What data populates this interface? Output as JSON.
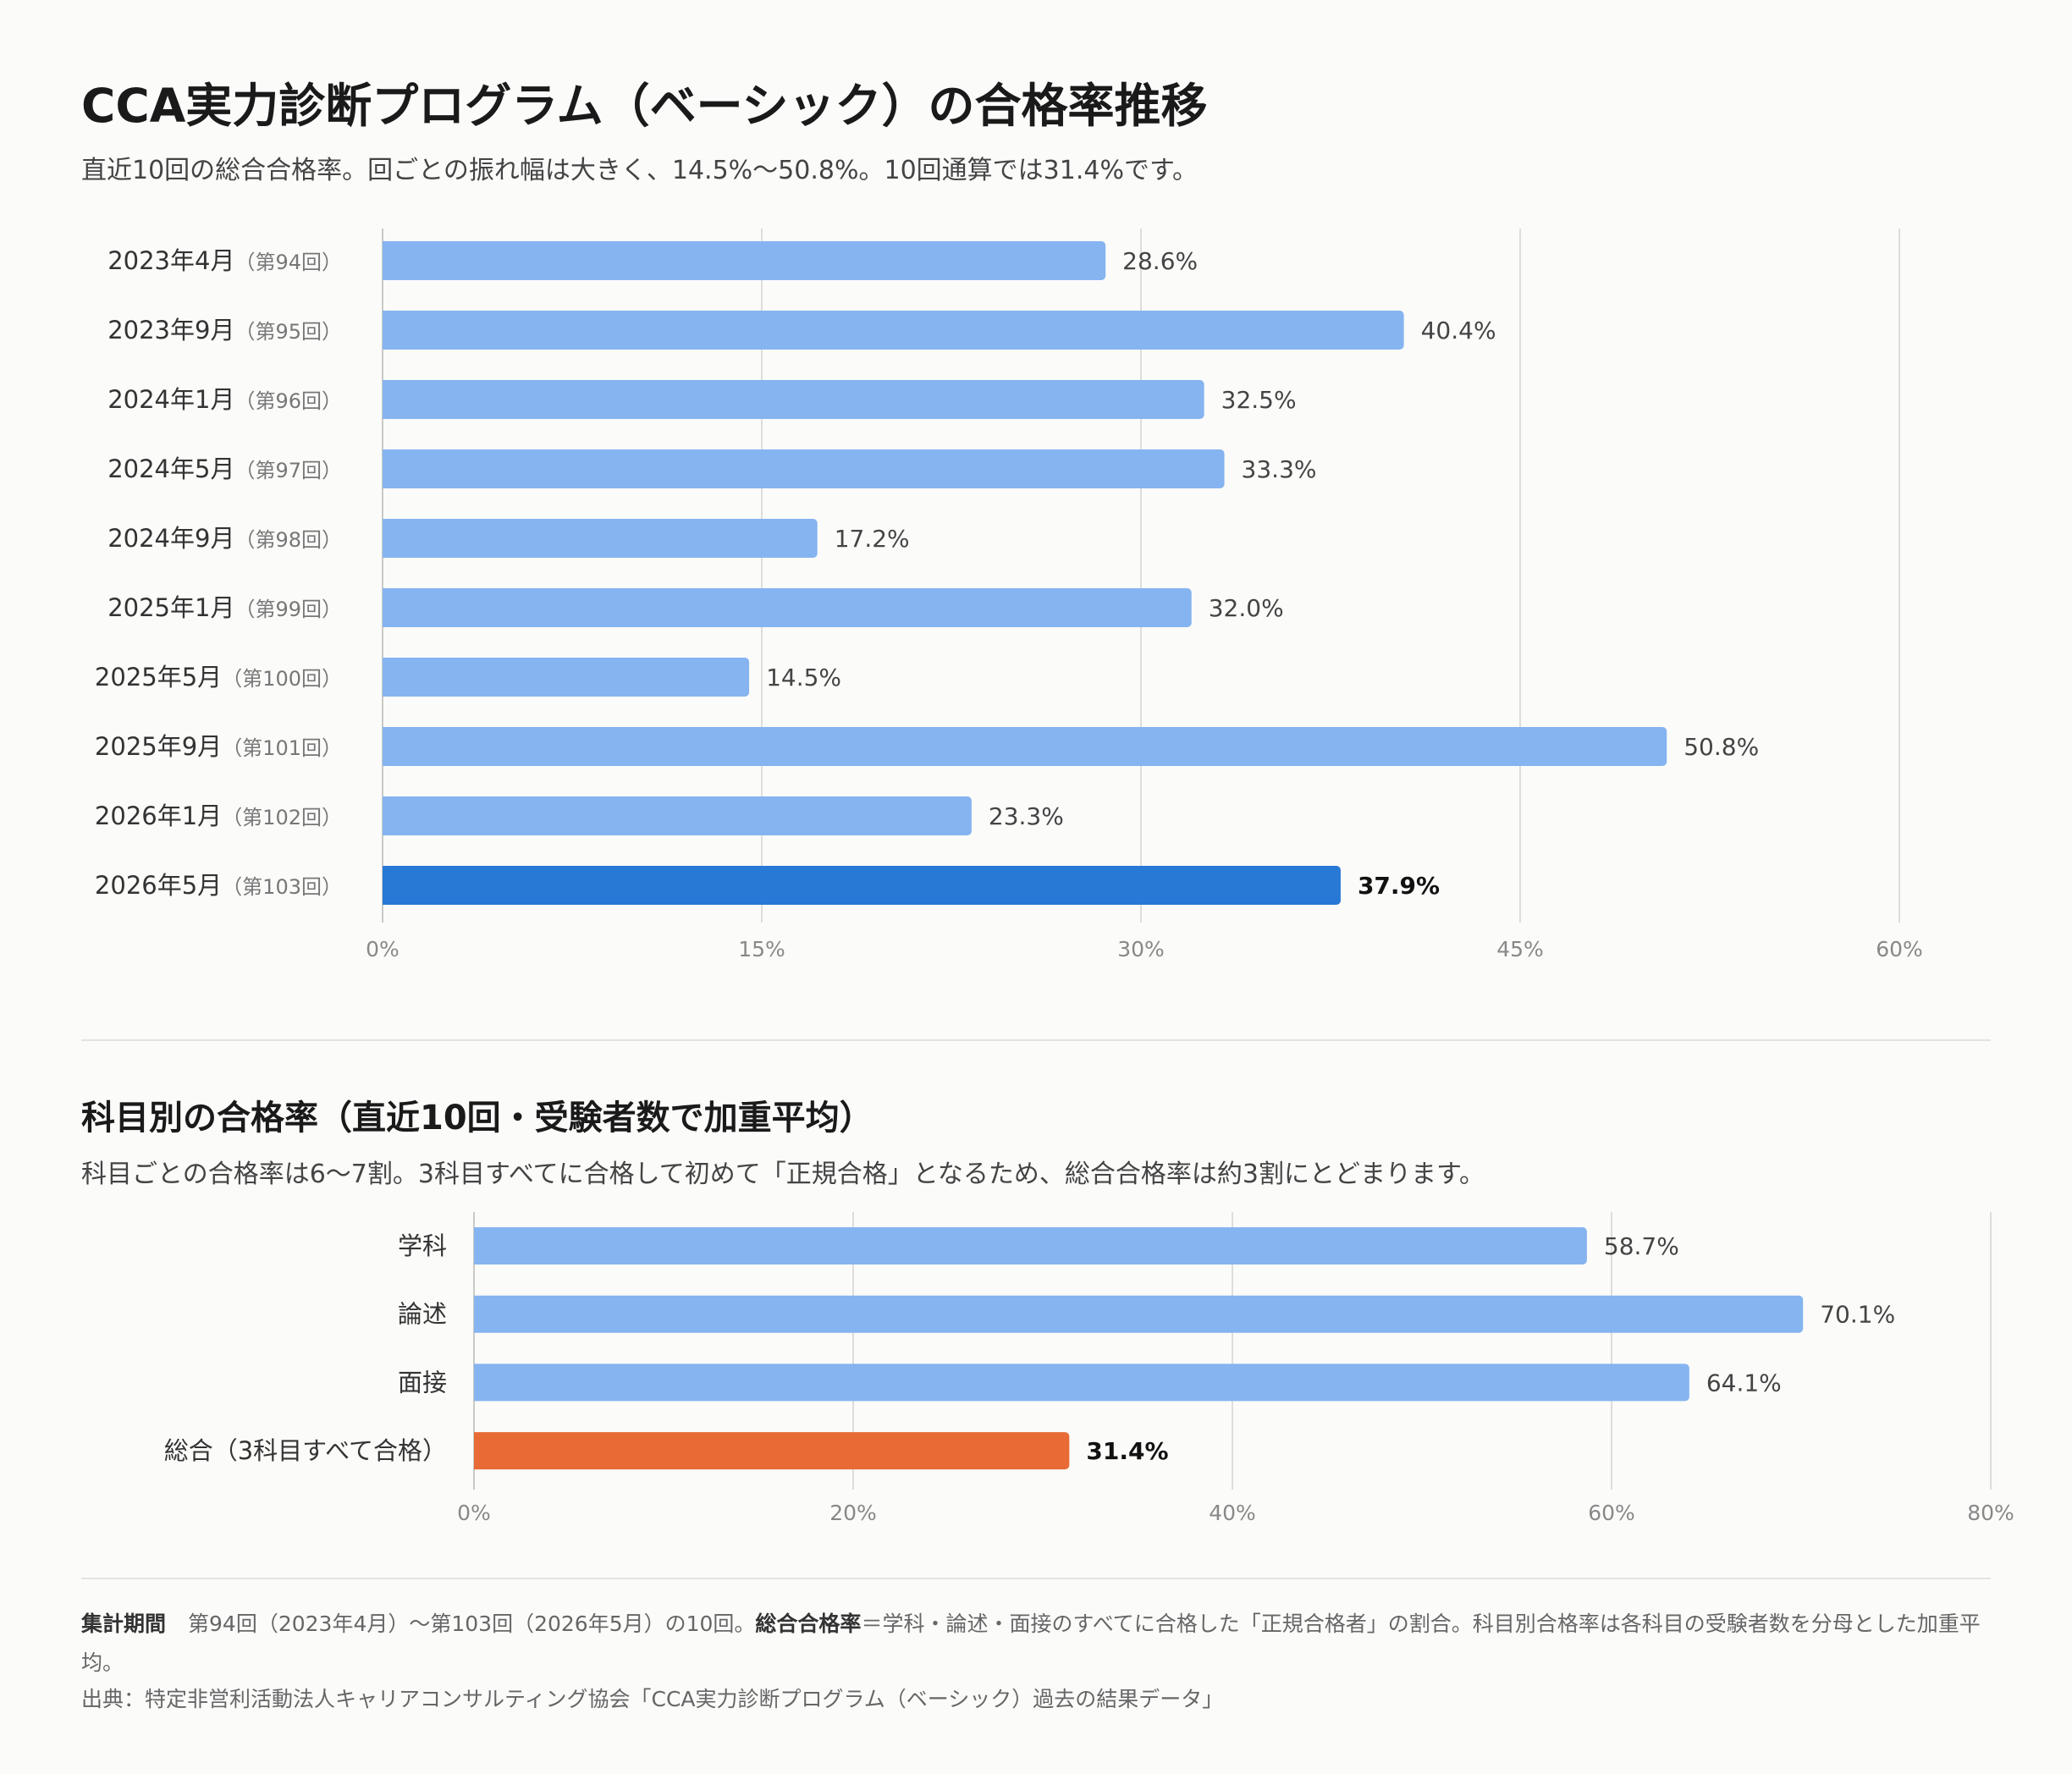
{
  "title": "CCA実力診断プログラム（ベーシック）の合格率推移",
  "subtitle": "直近10回の総合合格率。回ごとの振れ幅は大きく、14.5%〜50.8%。10回通算では31.4%です。",
  "section2": {
    "title": "科目別の合格率（直近10回・受験者数で加重平均）",
    "subtitle": "科目ごとの合格率は6〜7割。3科目すべてに合格して初めて「正規合格」となるため、総合合格率は約3割にとどまります。"
  },
  "footer": {
    "period_label": "集計期間",
    "period_text": "第94回（2023年4月）〜第103回（2026年5月）の10回。",
    "rate_label": "総合合格率",
    "rate_text": "＝学科・論述・面接のすべてに合格した「正規合格者」の割合。科目別合格率は各科目の受験者数を分母とした加重平均。",
    "source": "出典：特定非営利活動法人キャリアコンサルティング協会「CCA実力診断プログラム（ベーシック）過去の結果データ」"
  },
  "colors": {
    "bar": "#85b4f0",
    "highlight": "#2878d6",
    "total": "#e86a35",
    "grid": "#dddddb"
  },
  "chart_data": [
    {
      "type": "bar",
      "orientation": "horizontal",
      "categories": [
        {
          "main": "2023年4月",
          "sub": "（第94回）"
        },
        {
          "main": "2023年9月",
          "sub": "（第95回）"
        },
        {
          "main": "2024年1月",
          "sub": "（第96回）"
        },
        {
          "main": "2024年5月",
          "sub": "（第97回）"
        },
        {
          "main": "2024年9月",
          "sub": "（第98回）"
        },
        {
          "main": "2025年1月",
          "sub": "（第99回）"
        },
        {
          "main": "2025年5月",
          "sub": "（第100回）"
        },
        {
          "main": "2025年9月",
          "sub": "（第101回）"
        },
        {
          "main": "2026年1月",
          "sub": "（第102回）"
        },
        {
          "main": "2026年5月",
          "sub": "（第103回）"
        }
      ],
      "values": [
        28.6,
        40.4,
        32.5,
        33.3,
        17.2,
        32.0,
        14.5,
        50.8,
        23.3,
        37.9
      ],
      "data_labels": [
        "28.6%",
        "40.4%",
        "32.5%",
        "33.3%",
        "17.2%",
        "32.0%",
        "14.5%",
        "50.8%",
        "23.3%",
        "37.9%"
      ],
      "highlight_index": 9,
      "xlim": [
        0,
        60
      ],
      "xticks": [
        0,
        15,
        30,
        45,
        60
      ],
      "xtick_labels": [
        "0%",
        "15%",
        "30%",
        "45%",
        "60%"
      ],
      "grid": true
    },
    {
      "type": "bar",
      "orientation": "horizontal",
      "categories": [
        {
          "main": "学科",
          "sub": ""
        },
        {
          "main": "論述",
          "sub": ""
        },
        {
          "main": "面接",
          "sub": ""
        },
        {
          "main": "総合（3科目すべて合格）",
          "sub": ""
        }
      ],
      "values": [
        58.7,
        70.1,
        64.1,
        31.4
      ],
      "data_labels": [
        "58.7%",
        "70.1%",
        "64.1%",
        "31.4%"
      ],
      "highlight_index": 3,
      "xlim": [
        0,
        80
      ],
      "xticks": [
        0,
        20,
        40,
        60,
        80
      ],
      "xtick_labels": [
        "0%",
        "20%",
        "40%",
        "60%",
        "80%"
      ],
      "grid": true
    }
  ]
}
